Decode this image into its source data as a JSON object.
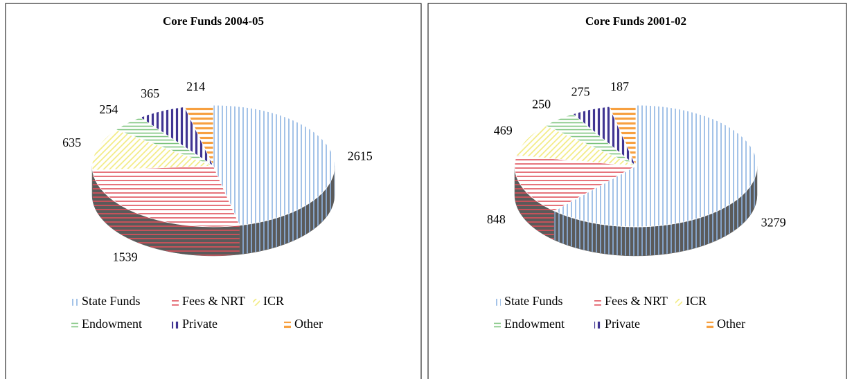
{
  "chart_data": [
    {
      "type": "pie",
      "title": "Core Funds 2004-05",
      "labels": [
        "State Funds",
        "Fees & NRT",
        "ICR",
        "Endowment",
        "Private",
        "Other"
      ],
      "values": [
        2615,
        1539,
        635,
        254,
        365,
        214
      ],
      "colors": [
        "#8eb4e3",
        "#e0505a",
        "#f2ea7a",
        "#7cc47c",
        "#403592",
        "#f7a040"
      ],
      "legend": "bottom"
    },
    {
      "type": "pie",
      "title": "Core Funds 2001-02",
      "labels": [
        "State Funds",
        "Fees & NRT",
        "ICR",
        "Endowment",
        "Private",
        "Other"
      ],
      "values": [
        3279,
        848,
        469,
        250,
        275,
        187
      ],
      "colors": [
        "#8eb4e3",
        "#e0505a",
        "#f2ea7a",
        "#7cc47c",
        "#403592",
        "#f7a040"
      ],
      "legend": "bottom"
    }
  ]
}
